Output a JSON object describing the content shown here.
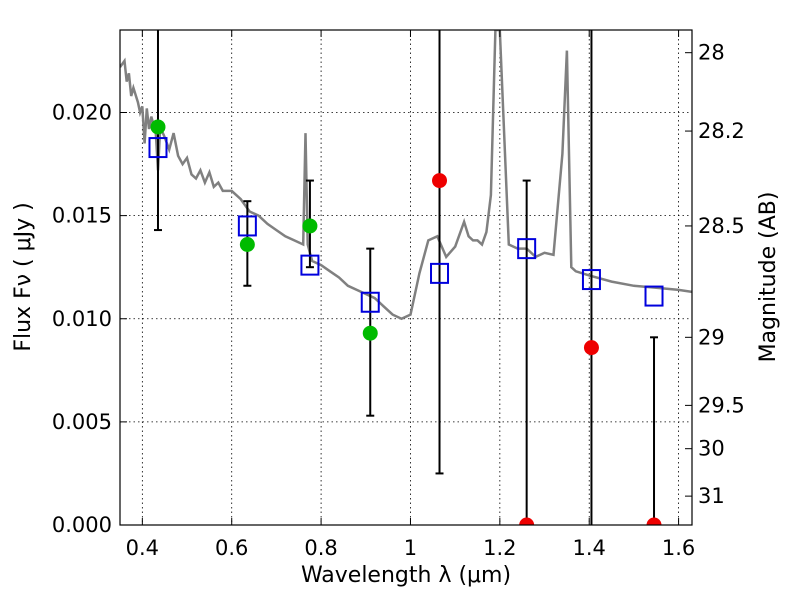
{
  "chart_data": {
    "type": "scatter",
    "xlabel": "Wavelength  λ (μm)",
    "ylabel_left": "Flux  Fν  ( μJy )",
    "ylabel_right": "Magnitude (AB)",
    "xlim": [
      0.35,
      1.63
    ],
    "ylim": [
      0.0,
      0.024
    ],
    "grid": true,
    "x_ticks": [
      0.4,
      0.6,
      0.8,
      1.0,
      1.2,
      1.4,
      1.6
    ],
    "x_tick_labels": [
      "0.4",
      "0.6",
      "0.8",
      "1",
      "1.2",
      "1.4",
      "1.6"
    ],
    "y_ticks": [
      0.0,
      0.005,
      0.01,
      0.015,
      0.02
    ],
    "y_tick_labels": [
      "0.000",
      "0.005",
      "0.010",
      "0.015",
      "0.020"
    ],
    "right_ticks": [
      {
        "label": "28",
        "flux": 0.0229
      },
      {
        "label": "28.2",
        "flux": 0.0191
      },
      {
        "label": "28.5",
        "flux": 0.0145
      },
      {
        "label": "29",
        "flux": 0.0091
      },
      {
        "label": "29.5",
        "flux": 0.0058
      },
      {
        "label": "30",
        "flux": 0.0037
      },
      {
        "label": "31",
        "flux": 0.0014
      }
    ],
    "model_sed": {
      "color": "#808080",
      "x": [
        0.35,
        0.36,
        0.365,
        0.37,
        0.375,
        0.38,
        0.39,
        0.395,
        0.4,
        0.405,
        0.41,
        0.415,
        0.42,
        0.43,
        0.435,
        0.44,
        0.45,
        0.46,
        0.47,
        0.48,
        0.49,
        0.5,
        0.51,
        0.52,
        0.53,
        0.54,
        0.55,
        0.56,
        0.57,
        0.58,
        0.6,
        0.62,
        0.64,
        0.66,
        0.68,
        0.7,
        0.72,
        0.74,
        0.76,
        0.765,
        0.77,
        0.775,
        0.78,
        0.8,
        0.82,
        0.84,
        0.86,
        0.88,
        0.9,
        0.92,
        0.94,
        0.96,
        0.98,
        1.0,
        1.02,
        1.04,
        1.06,
        1.08,
        1.1,
        1.12,
        1.13,
        1.14,
        1.15,
        1.16,
        1.17,
        1.18,
        1.19,
        1.2,
        1.22,
        1.24,
        1.26,
        1.28,
        1.3,
        1.32,
        1.34,
        1.35,
        1.36,
        1.37,
        1.4,
        1.45,
        1.5,
        1.55,
        1.6,
        1.63
      ],
      "y": [
        0.0222,
        0.0225,
        0.0215,
        0.0219,
        0.0208,
        0.0212,
        0.0205,
        0.02,
        0.0203,
        0.0185,
        0.0202,
        0.0192,
        0.0198,
        0.019,
        0.0172,
        0.0193,
        0.0188,
        0.0182,
        0.019,
        0.0179,
        0.0175,
        0.0178,
        0.017,
        0.0168,
        0.0172,
        0.0166,
        0.0171,
        0.0164,
        0.0166,
        0.0162,
        0.0162,
        0.0158,
        0.0152,
        0.015,
        0.0146,
        0.0143,
        0.014,
        0.0138,
        0.0136,
        0.019,
        0.0136,
        0.0132,
        0.0128,
        0.0126,
        0.0123,
        0.012,
        0.0116,
        0.0114,
        0.0112,
        0.011,
        0.0106,
        0.0102,
        0.01,
        0.0102,
        0.0122,
        0.0138,
        0.014,
        0.013,
        0.0135,
        0.0147,
        0.014,
        0.0138,
        0.0138,
        0.0136,
        0.0142,
        0.016,
        0.024,
        0.024,
        0.0136,
        0.0134,
        0.0134,
        0.013,
        0.0132,
        0.0131,
        0.018,
        0.023,
        0.0125,
        0.0123,
        0.0121,
        0.0118,
        0.0116,
        0.0115,
        0.0114,
        0.0113
      ]
    },
    "model_fluxes": {
      "color": "#0000dd",
      "x": [
        0.435,
        0.635,
        0.775,
        0.91,
        1.065,
        1.26,
        1.405,
        1.545
      ],
      "y": [
        0.0183,
        0.0145,
        0.0126,
        0.0108,
        0.0122,
        0.0134,
        0.0119,
        0.0111
      ]
    },
    "detections": {
      "color": "#00bb00",
      "x": [
        0.435,
        0.635,
        0.775,
        0.91
      ],
      "y": [
        0.0193,
        0.0136,
        0.0145,
        0.0093
      ],
      "err_low": [
        0.0143,
        0.0116,
        0.0125,
        0.0053
      ],
      "err_high": [
        0.024,
        0.0157,
        0.0167,
        0.0134
      ]
    },
    "non_detections": {
      "color": "#ee0000",
      "x": [
        1.065,
        1.26,
        1.405,
        1.545
      ],
      "y": [
        0.0167,
        0.0,
        0.0086,
        0.0
      ],
      "err_low": [
        0.0025,
        0.0,
        0.0,
        0.0
      ],
      "err_high": [
        0.024,
        0.0167,
        0.024,
        0.0091
      ]
    }
  }
}
